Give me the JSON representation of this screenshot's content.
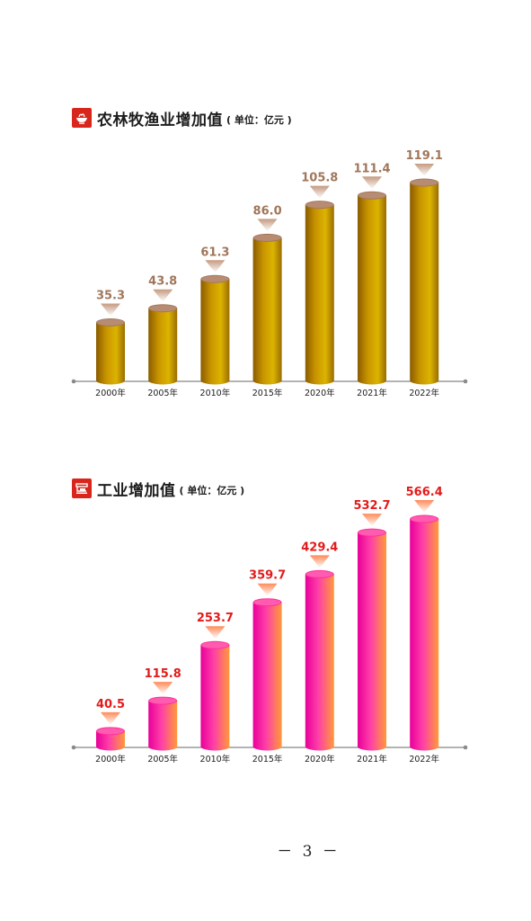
{
  "chart_data": [
    {
      "type": "bar",
      "title": "农林牧渔业增加值",
      "unit": "( 单位：亿元 )",
      "categories": [
        "2000年",
        "2005年",
        "2010年",
        "2015年",
        "2020年",
        "2021年",
        "2022年"
      ],
      "values": [
        35.3,
        43.8,
        61.3,
        86.0,
        105.8,
        111.4,
        119.1
      ],
      "value_labels": [
        "35.3",
        "43.8",
        "61.3",
        "86.0",
        "105.8",
        "111.4",
        "119.1"
      ],
      "ylim": [
        0,
        130
      ],
      "colors": {
        "bar": "#c89400",
        "label": "#a0765a",
        "icon": "#d9261c"
      }
    },
    {
      "type": "bar",
      "title": "工业增加值",
      "unit": "( 单位：亿元 )",
      "categories": [
        "2000年",
        "2005年",
        "2010年",
        "2015年",
        "2020年",
        "2021年",
        "2022年"
      ],
      "values": [
        40.5,
        115.8,
        253.7,
        359.7,
        429.4,
        532.7,
        566.4
      ],
      "value_labels": [
        "40.5",
        "115.8",
        "253.7",
        "359.7",
        "429.4",
        "532.7",
        "566.4"
      ],
      "ylim": [
        0,
        620
      ],
      "colors": {
        "bar": "#ff3aa8",
        "label": "#e31a1a",
        "icon": "#d9261c"
      }
    }
  ],
  "page_number": "－ 3 －"
}
